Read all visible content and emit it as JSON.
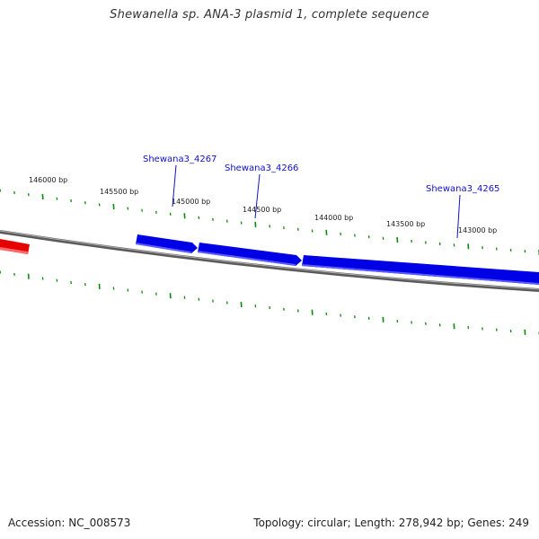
{
  "title": "Shewanella sp. ANA-3 plasmid 1, complete sequence",
  "footer": {
    "accession": "Accession: NC_008573",
    "summary": "Topology: circular; Length: 278,942 bp; Genes: 249"
  },
  "colors": {
    "backbone": "#808080",
    "gene_forward": "#0000e6",
    "gene_other": "#e60000",
    "tick": "#0a8a0a",
    "gene_label": "#1010c8"
  },
  "tick_labels": [
    {
      "text": "146000 bp"
    },
    {
      "text": "145500 bp"
    },
    {
      "text": "145000 bp"
    },
    {
      "text": "144500 bp"
    },
    {
      "text": "144000 bp"
    },
    {
      "text": "143500 bp"
    },
    {
      "text": "143000 bp"
    }
  ],
  "genes": [
    {
      "name": "Shewana3_4267"
    },
    {
      "name": "Shewana3_4266"
    },
    {
      "name": "Shewana3_4265"
    }
  ]
}
